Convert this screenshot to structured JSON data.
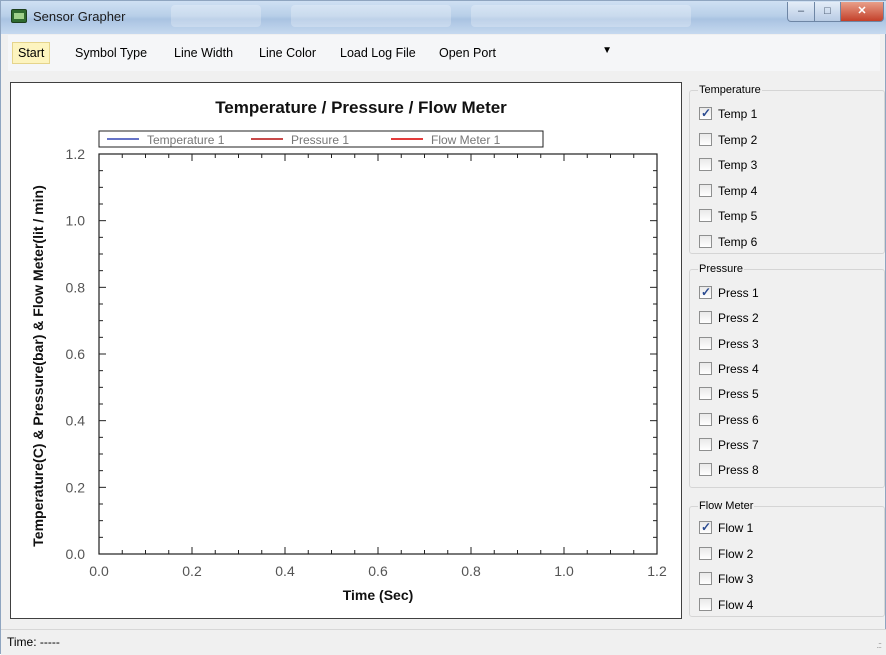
{
  "window": {
    "title": "Sensor Grapher"
  },
  "menu": {
    "items": [
      "Start",
      "Symbol Type",
      "Line Width",
      "Line Color",
      "Load Log File",
      "Open Port"
    ],
    "port_value": ""
  },
  "chart_data": {
    "type": "line",
    "title": "Temperature / Pressure / Flow Meter",
    "xlabel": "Time (Sec)",
    "ylabel": "Temperature(C) & Pressure(bar) & Flow Meter(lit / min)",
    "xlim": [
      0.0,
      1.2
    ],
    "ylim": [
      0.0,
      1.2
    ],
    "xticks": [
      "0.0",
      "0.2",
      "0.4",
      "0.6",
      "0.8",
      "1.0",
      "1.2"
    ],
    "yticks": [
      "0.0",
      "0.2",
      "0.4",
      "0.6",
      "0.8",
      "1.0",
      "1.2"
    ],
    "grid": false,
    "legend_position": "top",
    "series": [
      {
        "name": "Temperature 1",
        "color": "#5060c0",
        "x": [],
        "y": []
      },
      {
        "name": "Pressure 1",
        "color": "#c03030",
        "x": [],
        "y": []
      },
      {
        "name": "Flow Meter 1",
        "color": "#e02020",
        "x": [],
        "y": []
      }
    ]
  },
  "sidebar": {
    "temperature": {
      "title": "Temperature",
      "items": [
        {
          "label": "Temp 1",
          "checked": true
        },
        {
          "label": "Temp 2",
          "checked": false
        },
        {
          "label": "Temp 3",
          "checked": false
        },
        {
          "label": "Temp 4",
          "checked": false
        },
        {
          "label": "Temp 5",
          "checked": false
        },
        {
          "label": "Temp 6",
          "checked": false
        }
      ]
    },
    "pressure": {
      "title": "Pressure",
      "items": [
        {
          "label": "Press 1",
          "checked": true
        },
        {
          "label": "Press 2",
          "checked": false
        },
        {
          "label": "Press 3",
          "checked": false
        },
        {
          "label": "Press 4",
          "checked": false
        },
        {
          "label": "Press 5",
          "checked": false
        },
        {
          "label": "Press 6",
          "checked": false
        },
        {
          "label": "Press 7",
          "checked": false
        },
        {
          "label": "Press 8",
          "checked": false
        }
      ]
    },
    "flow": {
      "title": "Flow Meter",
      "items": [
        {
          "label": "Flow 1",
          "checked": true
        },
        {
          "label": "Flow 2",
          "checked": false
        },
        {
          "label": "Flow 3",
          "checked": false
        },
        {
          "label": "Flow 4",
          "checked": false
        }
      ]
    }
  },
  "status": {
    "text": "Time: -----"
  }
}
